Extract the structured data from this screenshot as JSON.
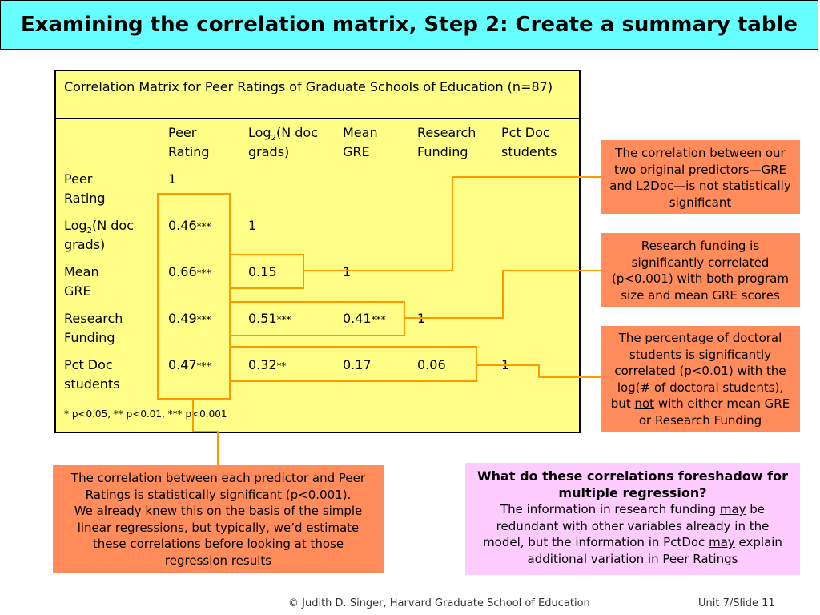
{
  "title": "Examining the correlation matrix, Step 2: Create a summary table",
  "matrix": {
    "caption": "Correlation Matrix for Peer Ratings of Graduate Schools of Education (n=87)",
    "columns": {
      "peer_l1": "Peer",
      "peer_l2": "Rating",
      "log_l1a": "Log",
      "log_sub": "2",
      "log_l1b": "(N doc",
      "log_l2": "grads)",
      "gre_l1": "Mean",
      "gre_l2": "GRE",
      "rf_l1": "Research",
      "rf_l2": "Funding",
      "pct_l1": "Pct Doc",
      "pct_l2": "students"
    },
    "rows": {
      "peer_l1": "Peer",
      "peer_l2": "Rating",
      "log_l1a": "Log",
      "log_sub": "2",
      "log_l1b": "(N doc",
      "log_l2": "grads)",
      "gre_l1": "Mean",
      "gre_l2": "GRE",
      "rf_l1": "Research",
      "rf_l2": "Funding",
      "pct_l1": "Pct Doc",
      "pct_l2": "students"
    },
    "values": {
      "r1c1": "1",
      "r2c1": "0.46",
      "r2c1s": "***",
      "r2c2": "1",
      "r3c1": "0.66",
      "r3c1s": "***",
      "r3c2": "0.15",
      "r3c3": "1",
      "r4c1": "0.49",
      "r4c1s": "***",
      "r4c2": "0.51",
      "r4c2s": "***",
      "r4c3": "0.41",
      "r4c3s": "***",
      "r4c4": "1",
      "r5c1": "0.47",
      "r5c1s": "***",
      "r5c2": "0.32",
      "r5c2s": "**",
      "r5c3": "0.17",
      "r5c4": "0.06",
      "r5c5": "1"
    },
    "footnote": "* p<0.05, ** p<0.01, *** p<0.001"
  },
  "callouts": {
    "gre_l2doc": "The correlation between our two original predictors—GRE and L2Doc—is not statistically significant",
    "research": "Research funding is significantly correlated (p<0.001) with both program size and mean GRE scores",
    "pctdoc_a": "The percentage of doctoral students is significantly correlated (p<0.01) with the log(# of doctoral students), but ",
    "pctdoc_not": "not",
    "pctdoc_b": " with either mean GRE or Research Funding",
    "predictors_a": "The correlation between each predictor and Peer Ratings is statistically significant (p<0.001).",
    "predictors_b": "We already knew this on the basis of the simple linear regressions, but typically, we’d estimate these correlations ",
    "predictors_before": "before",
    "predictors_c": " looking at those regression results"
  },
  "foreshadow": {
    "heading": "What do these correlations foreshadow for multiple regression?",
    "text_a": "The information in research funding ",
    "may1": "may",
    "text_b": " be redundant with other variables already in the model, but the information in PctDoc ",
    "may2": "may",
    "text_c": " explain additional variation in Peer Ratings"
  },
  "footer": {
    "credit": "© Judith D. Singer, Harvard Graduate School of Education",
    "slide": "Unit 7/Slide 11"
  },
  "colors": {
    "title_bg": "#66ffff",
    "table_bg": "#ffff88",
    "highlight": "#ff9900",
    "callout": "#ff8c5a",
    "question": "#ffccff"
  }
}
